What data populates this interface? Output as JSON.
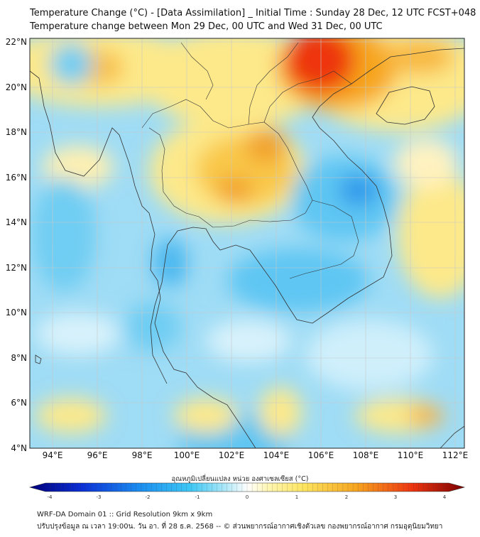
{
  "title": {
    "line1": "Temperature Change (°C) - [Data Assimilation] _ Initial Time : Sunday 28 Dec, 12 UTC FCST+048",
    "line2": "Temperature change between Mon 29 Dec, 00 UTC and Wed 31 Dec, 00 UTC"
  },
  "map": {
    "lat_labels": [
      "22°N",
      "20°N",
      "18°N",
      "16°N",
      "14°N",
      "12°N",
      "10°N",
      "8°N",
      "6°N",
      "4°N"
    ],
    "lon_labels": [
      "94°E",
      "96°E",
      "98°E",
      "100°E",
      "102°E",
      "104°E",
      "106°E",
      "108°E",
      "110°E",
      "112°E"
    ],
    "lon_range": [
      93,
      112.5
    ],
    "lat_range": [
      4,
      22.2
    ]
  },
  "colorbar": {
    "title": "อุณหภูมิเปลี่ยนแปลง หน่วย องศาเซลเซียส (°C)",
    "min": -4,
    "max": 4,
    "tick_labels": [
      "-4",
      "-3",
      "-2",
      "-1",
      "0",
      "1",
      "2",
      "3",
      "4"
    ],
    "colors": {
      "neg_4": "#00007a",
      "neg_3": "#0a2fd6",
      "neg_2": "#1a8cf0",
      "neg_1": "#3dc8f5",
      "neg_small": "#aee8f8",
      "zero": "#ffffff",
      "pos_small": "#fff6b0",
      "pos_1": "#fde560",
      "pos_2": "#f7a51f",
      "pos_3": "#ee3510",
      "pos_4": "#7a0000"
    }
  },
  "footer": {
    "line1": "WRF-DA Domain 01 :: Grid Resolution 9km x 9km",
    "line2": "ปรับปรุงข้อมูล ณ เวลา 19:00น. วัน อา. ที่ 28 ธ.ค. 2568 -- © ส่วนพยากรณ์อากาศเชิงตัวเลข กองพยากรณ์อากาศ กรมอุตุนิยมวิทยา"
  }
}
